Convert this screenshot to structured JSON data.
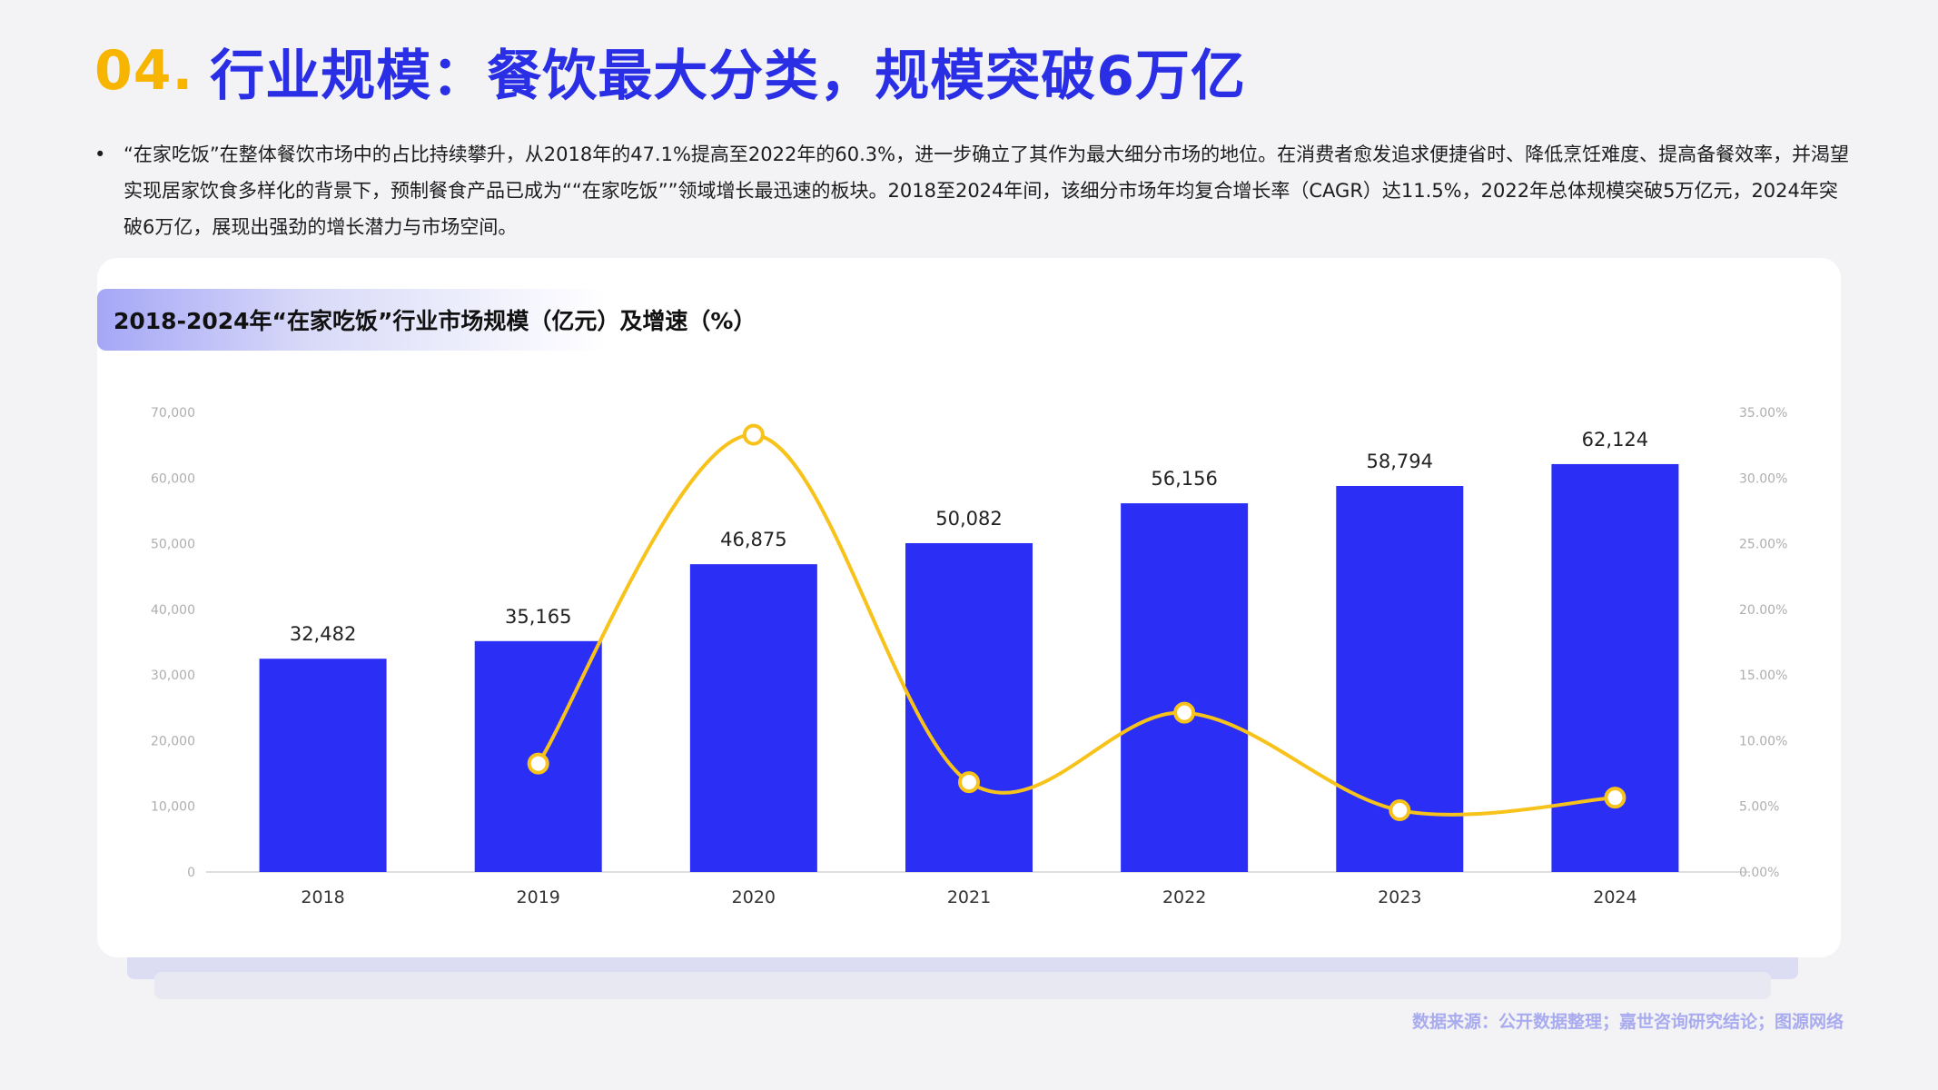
{
  "title": {
    "number": "04.",
    "text": "行业规模：餐饮最大分类，规模突破6万亿"
  },
  "summary": "“在家吃饭”在整体餐饮市场中的占比持续攀升，从2018年的47.1%提高至2022年的60.3%，进一步确立了其作为最大细分市场的地位。在消费者愈发追求便捷省时、降低烹饪难度、提高备餐效率，并渴望实现居家饮食多样化的背景下，预制餐食产品已成为““在家吃饭””领域增长最迅速的板块。2018至2024年间，该细分市场年均复合增长率（CAGR）达11.5%，2022年总体规模突破5万亿元，2024年突破6万亿，展现出强劲的增长潜力与市场空间。",
  "source": "数据来源：公开数据整理；嘉世咨询研究结论；图源网络",
  "colors": {
    "bar": "#2b2ff5",
    "line": "#f7c21a",
    "accent_title": "#2a2fe6",
    "number_accent": "#f7b500"
  },
  "chart_data": {
    "type": "bar",
    "title": "2018-2024年“在家吃饭”行业市场规模（亿元）及增速（%）",
    "categories": [
      "2018",
      "2019",
      "2020",
      "2021",
      "2022",
      "2023",
      "2024"
    ],
    "series": [
      {
        "type": "bar",
        "values": [
          32482,
          35165,
          46875,
          50082,
          56156,
          58794,
          62124
        ],
        "labels": [
          "32,482",
          "35,165",
          "46,875",
          "50,082",
          "56,156",
          "58,794",
          "62,124"
        ]
      },
      {
        "type": "line",
        "axis": "right",
        "values": [
          null,
          8.26,
          33.3,
          6.84,
          12.13,
          4.7,
          5.66
        ]
      }
    ],
    "y_left": {
      "min": 0,
      "max": 70000,
      "ticks": [
        "0",
        "10,000",
        "20,000",
        "30,000",
        "40,000",
        "50,000",
        "60,000",
        "70,000"
      ]
    },
    "y_right": {
      "min": 0,
      "max": 35,
      "ticks": [
        "0.00%",
        "5.00%",
        "10.00%",
        "15.00%",
        "20.00%",
        "25.00%",
        "30.00%",
        "35.00%"
      ]
    },
    "grid": false,
    "legend": "none"
  }
}
